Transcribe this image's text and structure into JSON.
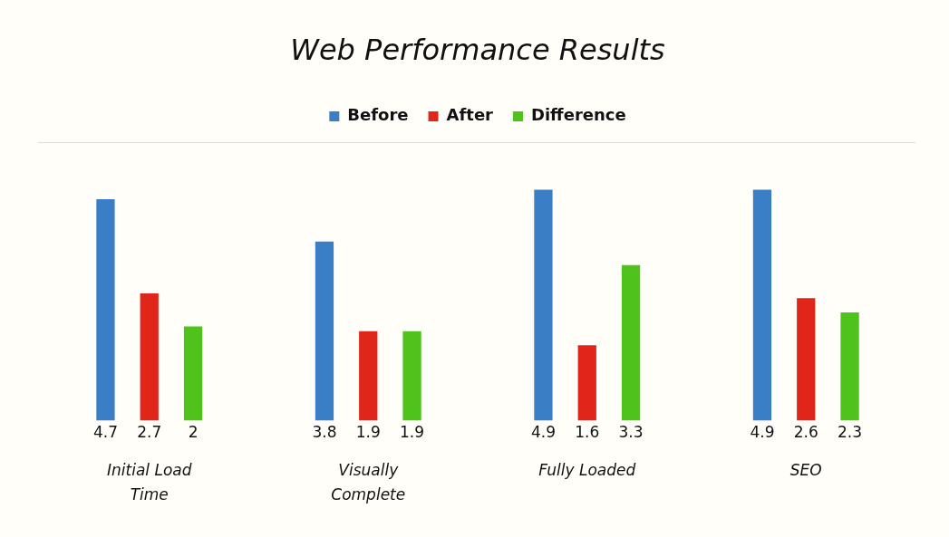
{
  "chart_data": {
    "type": "bar",
    "title": "Web Performance Results",
    "categories": [
      "Initial Load Time",
      "Visually Complete",
      "Fully Loaded",
      "SEO"
    ],
    "series": [
      {
        "name": "Before",
        "color": "#3a7ec6",
        "values": [
          4.7,
          3.8,
          4.9,
          4.9
        ]
      },
      {
        "name": "After",
        "color": "#e0251a",
        "values": [
          2.7,
          1.9,
          1.6,
          2.6
        ]
      },
      {
        "name": "Difference",
        "color": "#4fc31c",
        "values": [
          2,
          1.9,
          3.3,
          2.3
        ]
      }
    ],
    "data_labels": true,
    "legend": "top",
    "grid": false,
    "tick_labels": "x"
  }
}
